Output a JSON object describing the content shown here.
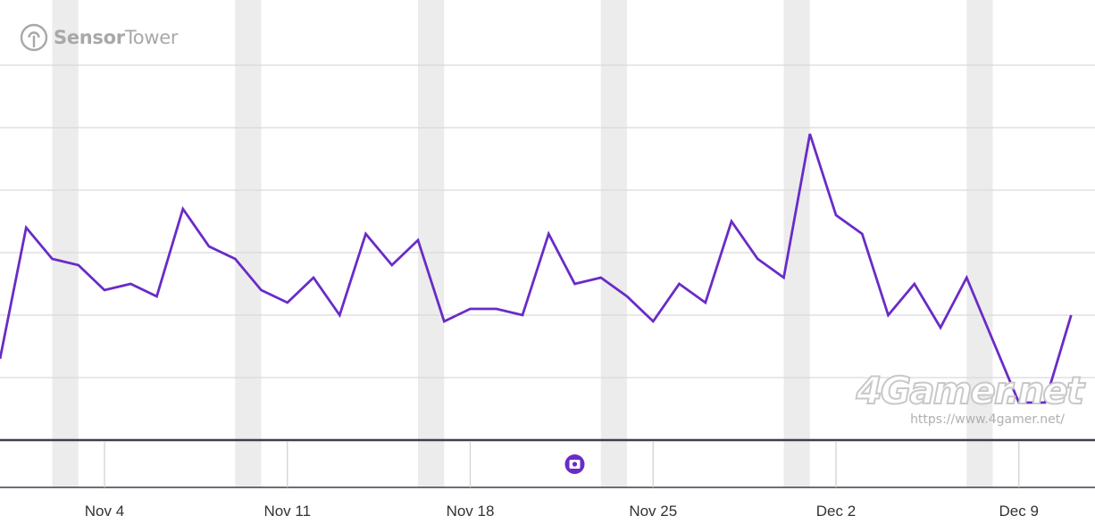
{
  "brand": {
    "logo_icon": "sensor-tower-icon",
    "logo_bold": "Sensor",
    "logo_light": "Tower",
    "watermark": "4Gamer.net",
    "watermark_url": "https://www.4gamer.net/"
  },
  "colors": {
    "line": "#6a2bc7",
    "grid": "#d9d9d9",
    "weekend_band": "#ececec",
    "axis": "#3d3d4f",
    "marker": "#6a2bc7"
  },
  "annotation": {
    "icon": "event-marker-icon",
    "date": "Nov 22"
  },
  "chart_data": {
    "type": "line",
    "title": "",
    "xlabel": "",
    "ylabel": "",
    "grid": true,
    "x_range": [
      "Oct 31",
      "Dec 11"
    ],
    "x_ticks": [
      "Nov 4",
      "Nov 11",
      "Nov 18",
      "Nov 25",
      "Dec 2",
      "Dec 9"
    ],
    "weekend_bands": [
      [
        "Nov 2",
        "Nov 3"
      ],
      [
        "Nov 9",
        "Nov 10"
      ],
      [
        "Nov 16",
        "Nov 17"
      ],
      [
        "Nov 23",
        "Nov 24"
      ],
      [
        "Nov 30",
        "Dec 1"
      ],
      [
        "Dec 7",
        "Dec 8"
      ]
    ],
    "series": [
      {
        "x": [
          "Oct 31",
          "Nov 1",
          "Nov 2",
          "Nov 3",
          "Nov 4",
          "Nov 5",
          "Nov 6",
          "Nov 7",
          "Nov 8",
          "Nov 9",
          "Nov 10",
          "Nov 11",
          "Nov 12",
          "Nov 13",
          "Nov 14",
          "Nov 15",
          "Nov 16",
          "Nov 17",
          "Nov 18",
          "Nov 19",
          "Nov 20",
          "Nov 21",
          "Nov 22",
          "Nov 23",
          "Nov 24",
          "Nov 25",
          "Nov 26",
          "Nov 27",
          "Nov 28",
          "Nov 29",
          "Nov 30",
          "Dec 1",
          "Dec 2",
          "Dec 3",
          "Dec 4",
          "Dec 5",
          "Dec 6",
          "Dec 7",
          "Dec 8",
          "Dec 9",
          "Dec 10",
          "Dec 11"
        ],
        "values": [
          2.3,
          4.4,
          3.9,
          3.8,
          3.4,
          3.5,
          3.3,
          4.7,
          4.1,
          3.9,
          3.4,
          3.2,
          3.6,
          3.0,
          4.3,
          3.8,
          4.2,
          2.9,
          3.1,
          3.1,
          3.0,
          4.3,
          3.5,
          3.6,
          3.3,
          2.9,
          3.5,
          3.2,
          4.5,
          3.9,
          3.6,
          5.9,
          4.6,
          4.3,
          3.0,
          3.5,
          2.8,
          3.6,
          2.6,
          1.6,
          1.6,
          3.0
        ]
      }
    ]
  }
}
